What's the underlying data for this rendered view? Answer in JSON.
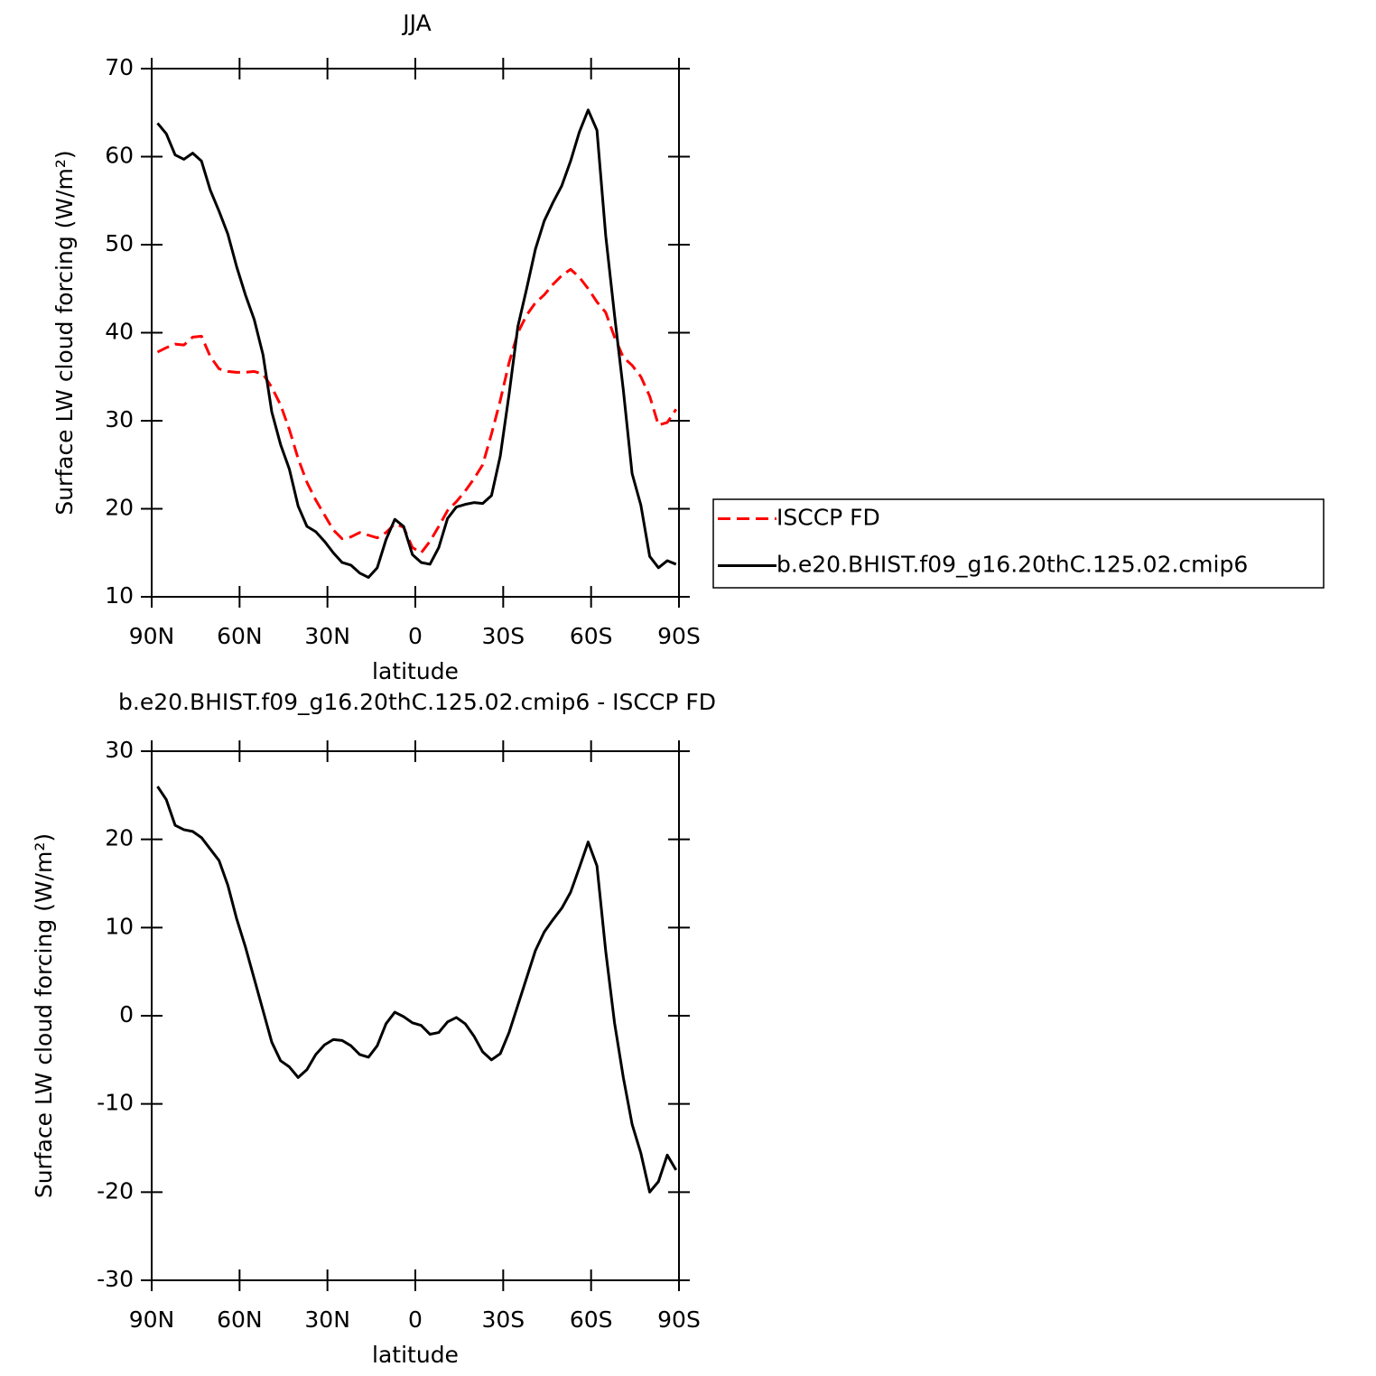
{
  "chart_data": [
    {
      "type": "line",
      "title": "JJA",
      "xlabel": "latitude",
      "ylabel": "Surface LW cloud forcing (W/m²)",
      "x": [
        88,
        85,
        82,
        79,
        76,
        73,
        70,
        67,
        64,
        61,
        58,
        55,
        52,
        49,
        46,
        43,
        40,
        37,
        34,
        31,
        28,
        25,
        22,
        19,
        16,
        13,
        10,
        7,
        4,
        1,
        -2,
        -5,
        -8,
        -11,
        -14,
        -17,
        -20,
        -23,
        -26,
        -29,
        -32,
        -35,
        -38,
        -41,
        -44,
        -47,
        -50,
        -53,
        -56,
        -59,
        -62,
        -65,
        -68,
        -71,
        -74,
        -77,
        -80,
        -83,
        -86,
        -89
      ],
      "xlim": [
        90,
        -90
      ],
      "xticks": [
        {
          "value": 90,
          "label": "90N"
        },
        {
          "value": 60,
          "label": "60N"
        },
        {
          "value": 30,
          "label": "30N"
        },
        0,
        {
          "value": -30,
          "label": "30S"
        },
        {
          "value": -60,
          "label": "60S"
        },
        {
          "value": -90,
          "label": "90S"
        }
      ],
      "ylim": [
        10,
        70
      ],
      "yticks": [
        10,
        20,
        30,
        40,
        50,
        60,
        70
      ],
      "legend": "right",
      "series": [
        {
          "name": "ISCCP FD",
          "color": "#ff0000",
          "dashed": true,
          "values": [
            37.8,
            38.3,
            38.7,
            38.6,
            39.5,
            39.6,
            37.3,
            35.9,
            35.6,
            35.5,
            35.5,
            35.6,
            35.3,
            33.8,
            31.8,
            29,
            25.7,
            23,
            21,
            19.3,
            17.6,
            16.6,
            16.8,
            17.3,
            17,
            16.7,
            17.3,
            18.3,
            17.9,
            15.6,
            15,
            16.3,
            18,
            19.8,
            20.8,
            22,
            23.4,
            25,
            28.5,
            32.3,
            36.6,
            40,
            42,
            43.4,
            44.3,
            45.5,
            46.5,
            47.2,
            46.3,
            45,
            43.5,
            42.3,
            39.5,
            37.2,
            36.3,
            35,
            32.8,
            29.5,
            29.8,
            31.3
          ]
        },
        {
          "name": "b.e20.BHIST.f09_g16.20thC.125.02.cmip6",
          "color": "#000000",
          "dashed": false,
          "values": [
            63.8,
            62.6,
            60.2,
            59.7,
            60.4,
            59.5,
            56.2,
            53.8,
            51.2,
            47.5,
            44.3,
            41.5,
            37.5,
            31,
            27.3,
            24.5,
            20.3,
            18,
            17.4,
            16.3,
            15,
            13.9,
            13.6,
            12.7,
            12.2,
            13.3,
            16.5,
            18.8,
            18,
            14.8,
            13.9,
            13.7,
            15.6,
            18.9,
            20.2,
            20.5,
            20.7,
            20.6,
            21.5,
            26,
            33,
            40.7,
            45,
            49.5,
            52.7,
            54.8,
            56.7,
            59.5,
            62.8,
            65.3,
            63,
            51,
            42,
            33.5,
            24,
            20.4,
            14.6,
            13.3,
            14.1,
            13.7
          ]
        }
      ]
    },
    {
      "type": "line",
      "title": "b.e20.BHIST.f09_g16.20thC.125.02.cmip6 - ISCCP FD",
      "xlabel": "latitude",
      "ylabel": "Surface LW cloud forcing (W/m²)",
      "x": [
        88,
        85,
        82,
        79,
        76,
        73,
        70,
        67,
        64,
        61,
        58,
        55,
        52,
        49,
        46,
        43,
        40,
        37,
        34,
        31,
        28,
        25,
        22,
        19,
        16,
        13,
        10,
        7,
        4,
        1,
        -2,
        -5,
        -8,
        -11,
        -14,
        -17,
        -20,
        -23,
        -26,
        -29,
        -32,
        -35,
        -38,
        -41,
        -44,
        -47,
        -50,
        -53,
        -56,
        -59,
        -62,
        -65,
        -68,
        -71,
        -74,
        -77,
        -80,
        -83,
        -86,
        -89
      ],
      "xlim": [
        90,
        -90
      ],
      "xticks": [
        {
          "value": 90,
          "label": "90N"
        },
        {
          "value": 60,
          "label": "60N"
        },
        {
          "value": 30,
          "label": "30N"
        },
        0,
        {
          "value": -30,
          "label": "30S"
        },
        {
          "value": -60,
          "label": "60S"
        },
        {
          "value": -90,
          "label": "90S"
        }
      ],
      "ylim": [
        -30,
        30
      ],
      "yticks": [
        -30,
        -20,
        -10,
        0,
        10,
        20,
        30
      ],
      "series": [
        {
          "color": "#000000",
          "dashed": false,
          "values": [
            26,
            24.5,
            21.6,
            21.1,
            20.9,
            20.2,
            18.9,
            17.6,
            14.8,
            11,
            7.8,
            4.2,
            0.6,
            -3,
            -5.1,
            -5.8,
            -7,
            -6.1,
            -4.4,
            -3.3,
            -2.7,
            -2.8,
            -3.4,
            -4.4,
            -4.7,
            -3.4,
            -0.9,
            0.4,
            -0.1,
            -0.8,
            -1.1,
            -2.1,
            -1.9,
            -0.7,
            -0.2,
            -0.9,
            -2.3,
            -4.1,
            -5,
            -4.3,
            -1.9,
            1.2,
            4.3,
            7.4,
            9.5,
            10.9,
            12.2,
            14,
            16.8,
            19.7,
            17,
            7.3,
            -0.8,
            -7,
            -12.3,
            -15.6,
            -20,
            -18.8,
            -15.8,
            -17.5
          ]
        }
      ]
    }
  ]
}
